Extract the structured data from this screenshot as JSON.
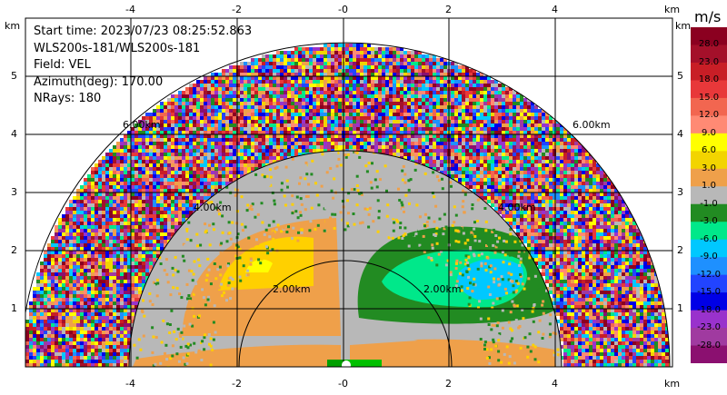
{
  "info": {
    "start_time": "Start time: 2023/07/23 08:25:52.863",
    "instrument": "WLS200s-181/WLS200s-181",
    "field": "Field: VEL",
    "azimuth": "Azimuth(deg): 170.00",
    "nrays": "NRays: 180"
  },
  "axes": {
    "x_ticks": [
      "-4",
      "-2",
      "-0",
      "2",
      "4"
    ],
    "y_ticks": [
      "1",
      "2",
      "3",
      "4",
      "5"
    ],
    "unit": "km"
  },
  "range_rings": [
    "2.00km",
    "4.00km",
    "6.00km"
  ],
  "colorbar": {
    "title": "m/s",
    "labels": [
      "28.0",
      "23.0",
      "18.0",
      "15.0",
      "12.0",
      "9.0",
      "6.0",
      "3.0",
      "1.0",
      "-1.0",
      "-3.0",
      "-6.0",
      "-9.0",
      "-12.0",
      "-15.0",
      "-18.0",
      "-23.0",
      "-28.0"
    ],
    "colors": [
      "#8b0020",
      "#a4102a",
      "#c81e26",
      "#e8383a",
      "#f26650",
      "#ff8a74",
      "#ffff00",
      "#f2d400",
      "#efa04a",
      "#b8b8b8",
      "#228b22",
      "#00e88a",
      "#00c8ff",
      "#1e90ff",
      "#2244ff",
      "#0000e6",
      "#9932cc",
      "#a03aa0",
      "#8b1070"
    ]
  }
}
